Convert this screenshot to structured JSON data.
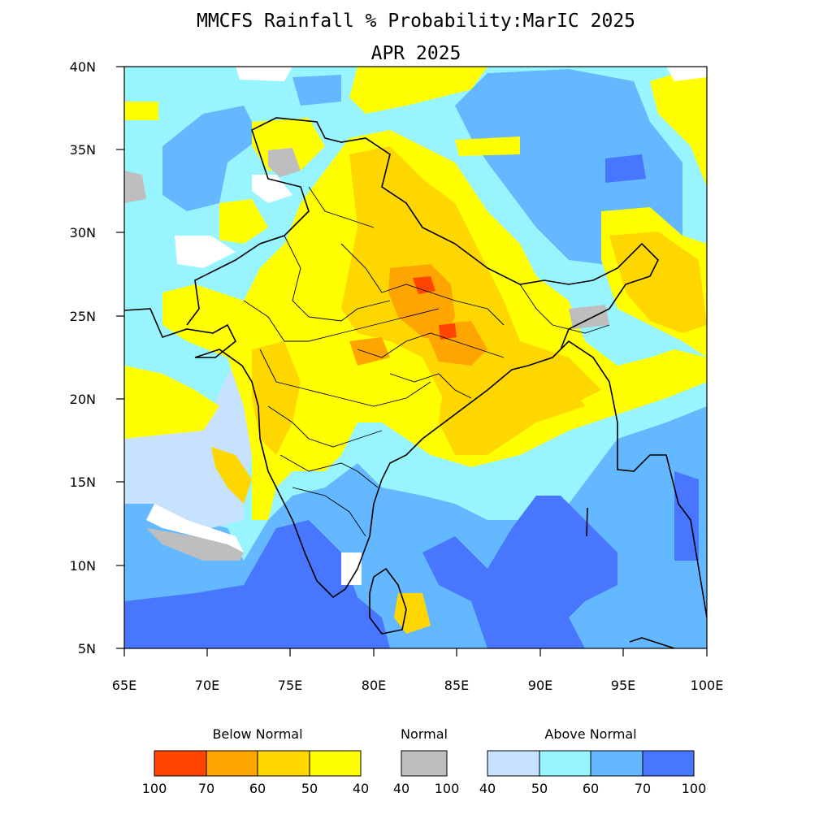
{
  "title": "MMCFS Rainfall % Probability:MarIC 2025",
  "subtitle": "APR 2025",
  "axes": {
    "x_ticks": [
      "65E",
      "70E",
      "75E",
      "80E",
      "85E",
      "90E",
      "95E",
      "100E"
    ],
    "y_ticks": [
      "5N",
      "10N",
      "15N",
      "20N",
      "25N",
      "30N",
      "35N",
      "40N"
    ],
    "lon_range": [
      65,
      100
    ],
    "lat_range": [
      5,
      40
    ]
  },
  "colors": {
    "below_100_70": "#ff4500",
    "below_70_60": "#ffa500",
    "below_60_50": "#ffd700",
    "below_50_40": "#ffff00",
    "normal": "#bebebe",
    "above_40_50": "#c6e2ff",
    "above_50_60": "#98f5ff",
    "above_60_70": "#63b8ff",
    "above_70_100": "#4876ff",
    "no_signal": "#ffffff"
  },
  "legend": {
    "below": {
      "heading": "Below Normal",
      "labels": [
        "100",
        "70",
        "60",
        "50",
        "40"
      ]
    },
    "normal": {
      "heading": "Normal",
      "labels": [
        "40",
        "100"
      ]
    },
    "above": {
      "heading": "Above Normal",
      "labels": [
        "40",
        "50",
        "60",
        "70",
        "100"
      ]
    }
  }
}
